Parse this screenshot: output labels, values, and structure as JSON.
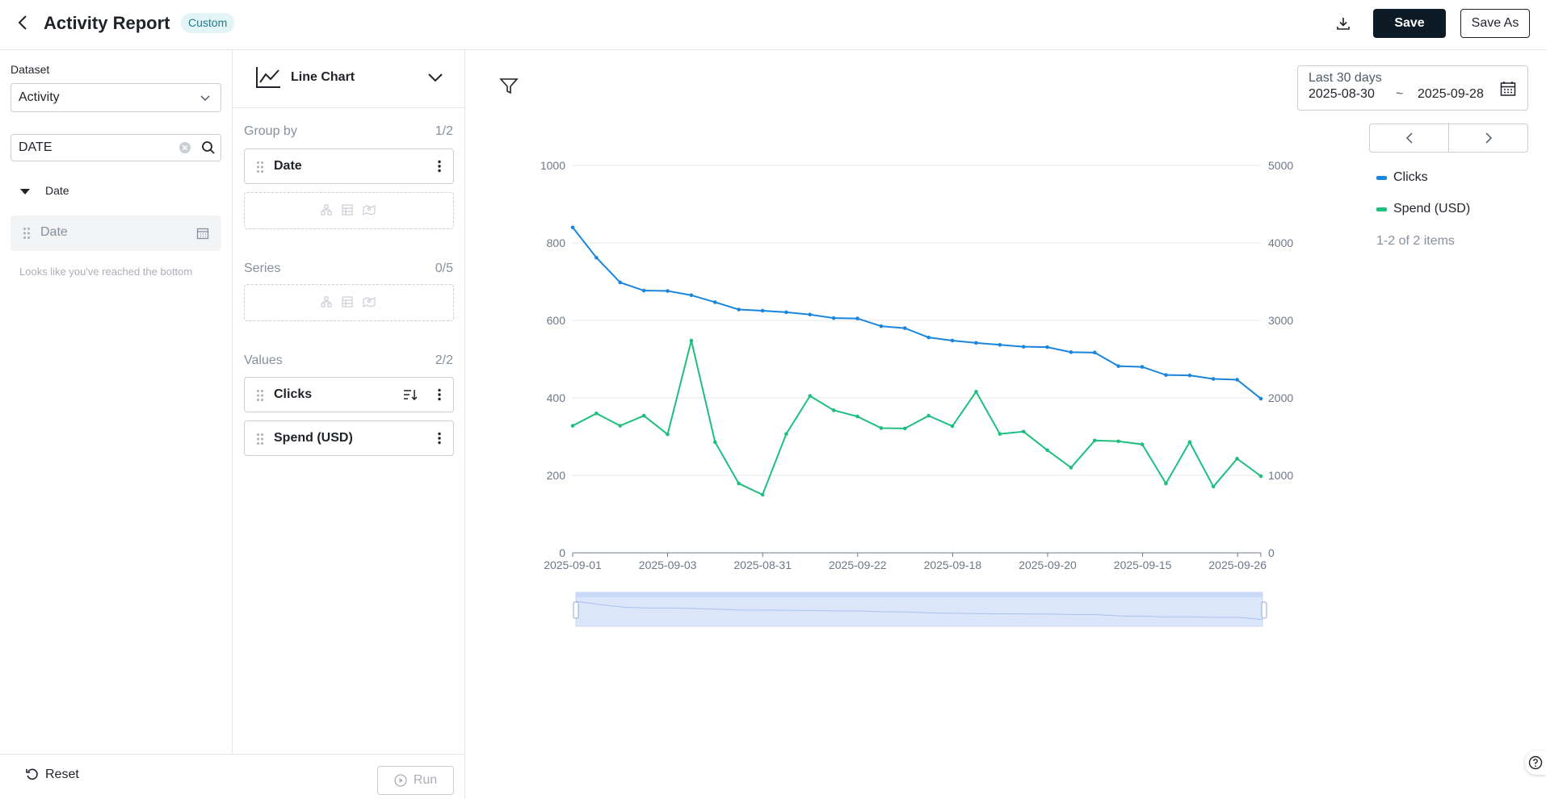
{
  "header": {
    "title": "Activity Report",
    "badge": "Custom",
    "save_label": "Save",
    "save_as_label": "Save As"
  },
  "left_panel": {
    "dataset_label": "Dataset",
    "dataset_value": "Activity",
    "search_value": "DATE",
    "tree_group": "Date",
    "field_item": "Date",
    "bottom_note": "Looks like you've reached the bottom"
  },
  "config": {
    "chart_type": "Line Chart",
    "group_by": {
      "title": "Group by",
      "count": "1/2",
      "items": [
        "Date"
      ]
    },
    "series": {
      "title": "Series",
      "count": "0/5"
    },
    "values": {
      "title": "Values",
      "count": "2/2",
      "items": [
        "Clicks",
        "Spend (USD)"
      ]
    }
  },
  "footer": {
    "reset_label": "Reset",
    "run_label": "Run"
  },
  "date_range": {
    "preset": "Last 30 days",
    "from": "2025-08-30",
    "separator": "~",
    "to": "2025-09-28"
  },
  "legend": {
    "items": [
      {
        "name": "Clicks",
        "color": "#1a85dd"
      },
      {
        "name": "Spend (USD)",
        "color": "#1ebf7e"
      }
    ],
    "count_text": "1-2 of 2 items"
  },
  "colors": {
    "primary_button": "#0d1b26",
    "badge_bg": "#e3f4f6",
    "badge_text": "#1d7c87",
    "clicks_line": "#1a85dd",
    "spend_line": "#1ebf7e",
    "slider_fill": "#dbe6fb"
  },
  "chart_data": {
    "type": "line",
    "x_tick_labels": [
      "2025-09-01",
      "2025-09-03",
      "2025-08-31",
      "2025-09-22",
      "2025-09-18",
      "2025-09-20",
      "2025-09-15",
      "2025-09-26"
    ],
    "y_left": {
      "ticks": [
        0,
        200,
        400,
        600,
        800,
        1000
      ],
      "range": [
        0,
        1000
      ]
    },
    "y_right": {
      "ticks": [
        0,
        1000,
        2000,
        3000,
        4000,
        5000
      ],
      "range": [
        0,
        5000
      ]
    },
    "grid": true,
    "legend_position": "right",
    "series": [
      {
        "name": "Clicks",
        "axis": "left",
        "values": [
          840,
          762,
          698,
          677,
          676,
          665,
          647,
          628,
          625,
          621,
          615,
          606,
          605,
          585,
          580,
          556,
          548,
          542,
          537,
          532,
          531,
          518,
          517,
          482,
          480,
          459,
          458,
          449,
          447,
          398
        ]
      },
      {
        "name": "Spend (USD)",
        "axis": "right",
        "values": [
          1640,
          1800,
          1640,
          1770,
          1530,
          2740,
          1430,
          895,
          750,
          1535,
          2025,
          1840,
          1760,
          1610,
          1605,
          1770,
          1635,
          2080,
          1535,
          1565,
          1325,
          1100,
          1450,
          1440,
          1400,
          895,
          1430,
          855,
          1215,
          990
        ]
      }
    ]
  }
}
